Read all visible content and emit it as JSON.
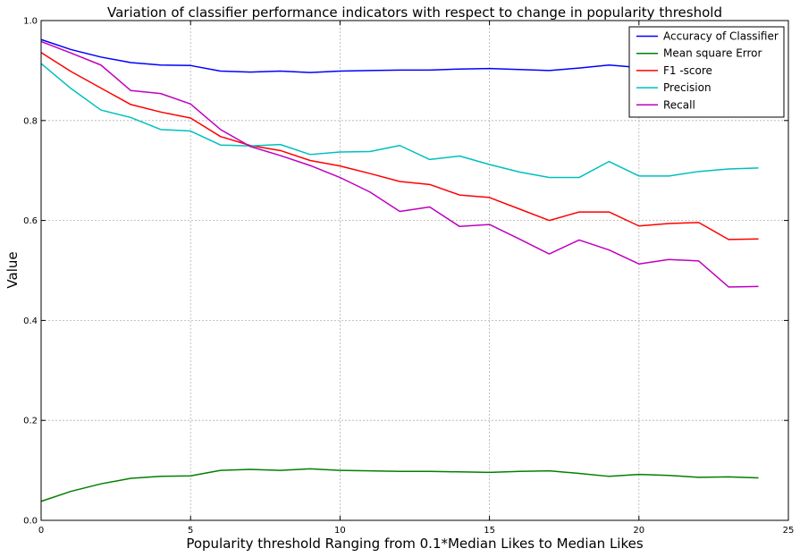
{
  "chart_data": {
    "type": "line",
    "title": "Variation of classifier performance indicators with respect to change in popularity threshold",
    "xlabel": "Popularity threshold Ranging from 0.1*Median Likes to Median Likes",
    "ylabel": "Value",
    "xlim": [
      0,
      25
    ],
    "ylim": [
      0.0,
      1.0
    ],
    "xticks": [
      0,
      5,
      10,
      15,
      20,
      25
    ],
    "xtick_labels": [
      "0",
      "5",
      "10",
      "15",
      "20",
      "25"
    ],
    "yticks": [
      0.0,
      0.2,
      0.4,
      0.6,
      0.8,
      1.0
    ],
    "ytick_labels": [
      "0.0",
      "0.2",
      "0.4",
      "0.6",
      "0.8",
      "1.0"
    ],
    "grid": true,
    "legend_position": "top-right",
    "x": [
      0,
      1,
      2,
      3,
      4,
      5,
      6,
      7,
      8,
      9,
      10,
      11,
      12,
      13,
      14,
      15,
      16,
      17,
      18,
      19,
      20,
      21,
      22,
      23,
      24
    ],
    "series": [
      {
        "name": "Accuracy of Classifier",
        "color": "#0000ff",
        "values": [
          0.962,
          0.942,
          0.927,
          0.916,
          0.911,
          0.91,
          0.899,
          0.897,
          0.899,
          0.896,
          0.899,
          0.9,
          0.901,
          0.901,
          0.903,
          0.904,
          0.902,
          0.9,
          0.905,
          0.911,
          0.906,
          0.904,
          0.902,
          0.903,
          0.904
        ]
      },
      {
        "name": "Mean square Error",
        "color": "#008000",
        "values": [
          0.038,
          0.058,
          0.073,
          0.084,
          0.088,
          0.089,
          0.1,
          0.102,
          0.1,
          0.103,
          0.1,
          0.099,
          0.098,
          0.098,
          0.097,
          0.096,
          0.098,
          0.099,
          0.094,
          0.088,
          0.092,
          0.09,
          0.086,
          0.087,
          0.085
        ]
      },
      {
        "name": "F1 -score",
        "color": "#ff0000",
        "values": [
          0.936,
          0.898,
          0.865,
          0.832,
          0.817,
          0.805,
          0.768,
          0.75,
          0.74,
          0.72,
          0.709,
          0.694,
          0.678,
          0.672,
          0.651,
          0.646,
          0.623,
          0.6,
          0.617,
          0.617,
          0.589,
          0.594,
          0.596,
          0.562,
          0.563
        ]
      },
      {
        "name": "Precision",
        "color": "#00bfbf",
        "values": [
          0.914,
          0.864,
          0.821,
          0.806,
          0.782,
          0.779,
          0.751,
          0.749,
          0.752,
          0.732,
          0.737,
          0.738,
          0.75,
          0.722,
          0.729,
          0.712,
          0.697,
          0.686,
          0.686,
          0.718,
          0.689,
          0.689,
          0.698,
          0.703,
          0.705
        ]
      },
      {
        "name": "Recall",
        "color": "#bf00bf",
        "values": [
          0.958,
          0.935,
          0.911,
          0.86,
          0.854,
          0.833,
          0.782,
          0.748,
          0.73,
          0.71,
          0.686,
          0.657,
          0.618,
          0.627,
          0.588,
          0.592,
          0.563,
          0.533,
          0.561,
          0.541,
          0.513,
          0.522,
          0.519,
          0.467,
          0.468
        ]
      }
    ]
  }
}
